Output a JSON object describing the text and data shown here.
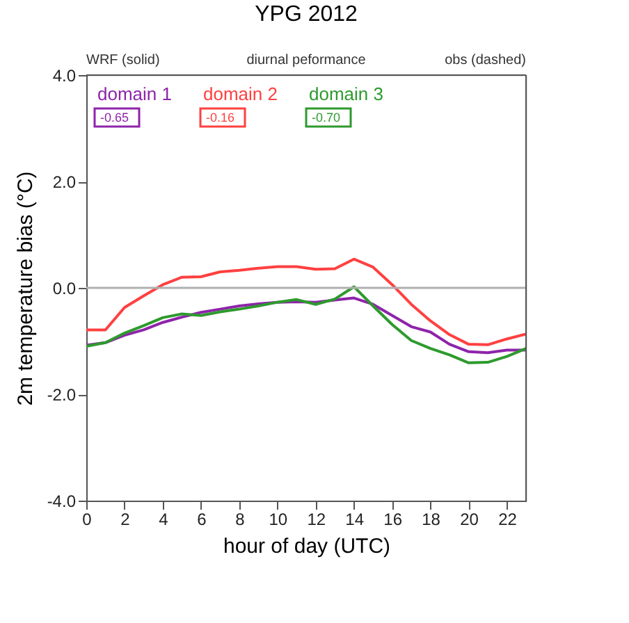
{
  "chart_data": {
    "type": "line",
    "title": "YPG 2012",
    "xlabel": "hour of day (UTC)",
    "ylabel": "2m temperature bias (°C)",
    "x": [
      0,
      1,
      2,
      3,
      4,
      5,
      6,
      7,
      8,
      9,
      10,
      11,
      12,
      13,
      14,
      15,
      16,
      17,
      18,
      19,
      20,
      21,
      22,
      23
    ],
    "series": [
      {
        "name": "domain 1",
        "color": "#8e24aa",
        "values": [
          -1.08,
          -1.03,
          -0.89,
          -0.79,
          -0.65,
          -0.55,
          -0.46,
          -0.4,
          -0.34,
          -0.3,
          -0.27,
          -0.26,
          -0.27,
          -0.23,
          -0.19,
          -0.31,
          -0.52,
          -0.73,
          -0.83,
          -1.06,
          -1.2,
          -1.22,
          -1.17,
          -1.17
        ]
      },
      {
        "name": "domain 2",
        "color": "#ff4040",
        "values": [
          -0.79,
          -0.79,
          -0.37,
          -0.15,
          0.06,
          0.2,
          0.21,
          0.3,
          0.33,
          0.37,
          0.4,
          0.4,
          0.35,
          0.36,
          0.54,
          0.39,
          0.06,
          -0.31,
          -0.62,
          -0.88,
          -1.06,
          -1.07,
          -0.96,
          -0.87
        ]
      },
      {
        "name": "domain 3",
        "color": "#2e9a2e",
        "values": [
          -1.1,
          -1.03,
          -0.85,
          -0.71,
          -0.56,
          -0.49,
          -0.52,
          -0.45,
          -0.4,
          -0.34,
          -0.27,
          -0.22,
          -0.31,
          -0.21,
          0.02,
          -0.34,
          -0.69,
          -0.99,
          -1.14,
          -1.26,
          -1.41,
          -1.4,
          -1.29,
          -1.14
        ]
      }
    ],
    "annotations": [
      "WRF (solid)",
      "diurnal peformance",
      "obs (dashed)",
      "-0.65",
      "-0.16",
      "-0.70"
    ],
    "xlim": [
      0,
      23
    ],
    "xticks": [
      0,
      2,
      4,
      6,
      8,
      10,
      12,
      14,
      16,
      18,
      20,
      22
    ],
    "ylim": [
      -4,
      4
    ],
    "yticks": [
      {
        "value": -4,
        "label": "-4.0"
      },
      {
        "value": -2,
        "label": "-2.0"
      },
      {
        "value": 0,
        "label": "0.0"
      },
      {
        "value": 2,
        "label": "2.0"
      },
      {
        "value": 4,
        "label": "4.0"
      }
    ],
    "ref_lines": [
      {
        "axis": "y",
        "value": 0,
        "color": "#b0b0b0"
      }
    ],
    "legend": "top left",
    "grid": false,
    "marker": "none",
    "line_style": "solid"
  }
}
